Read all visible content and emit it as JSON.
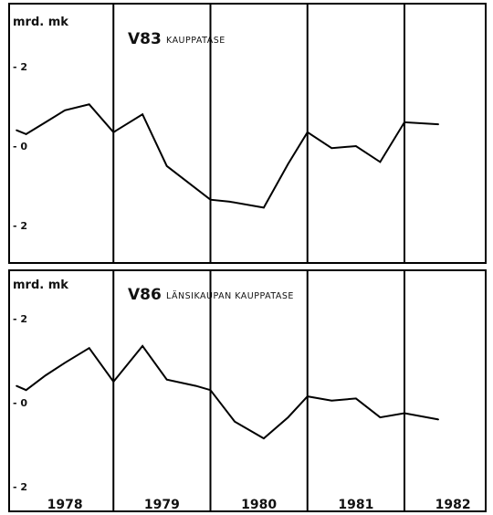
{
  "chart_data": [
    {
      "type": "line",
      "code": "V83",
      "title": "KAUPPATASE",
      "unit": "mrd. mk",
      "ylim": [
        -2.2,
        2.8
      ],
      "yticks": [
        {
          "value": 2,
          "label": "- 2"
        },
        {
          "value": 0,
          "label": "- 0"
        },
        {
          "value": -2,
          "label": "- 2"
        }
      ],
      "x_period": [
        1978,
        1982
      ],
      "series": [
        {
          "x": [
            1978.0,
            1978.1,
            1978.3,
            1978.5,
            1978.75,
            1979.0,
            1979.3,
            1979.55,
            1980.0,
            1980.2,
            1980.55,
            1980.8,
            1981.0,
            1981.25,
            1981.5,
            1981.75,
            1982.0,
            1982.35
          ],
          "y": [
            0.4,
            0.3,
            0.6,
            0.9,
            1.05,
            0.35,
            0.8,
            -0.5,
            -1.35,
            -1.4,
            -1.55,
            -0.45,
            0.35,
            -0.05,
            0.0,
            -0.4,
            0.6,
            0.55
          ]
        }
      ]
    },
    {
      "type": "line",
      "code": "V86",
      "title": "LÄNSIKAUPAN KAUPPATASE",
      "unit": "mrd. mk",
      "ylim": [
        -2.2,
        2.8
      ],
      "yticks": [
        {
          "value": 2,
          "label": "- 2"
        },
        {
          "value": 0,
          "label": "- 0"
        },
        {
          "value": -2,
          "label": "- 2"
        }
      ],
      "x_period": [
        1978,
        1982
      ],
      "series": [
        {
          "x": [
            1978.0,
            1978.1,
            1978.3,
            1978.5,
            1978.75,
            1979.0,
            1979.3,
            1979.55,
            1979.85,
            1980.0,
            1980.25,
            1980.55,
            1980.8,
            1981.0,
            1981.25,
            1981.5,
            1981.75,
            1982.0,
            1982.35
          ],
          "y": [
            0.4,
            0.3,
            0.65,
            0.95,
            1.3,
            0.5,
            1.35,
            0.55,
            0.4,
            0.3,
            -0.45,
            -0.85,
            -0.35,
            0.15,
            0.05,
            0.1,
            -0.35,
            -0.25,
            -0.4
          ]
        }
      ]
    }
  ],
  "x_axis": {
    "years": [
      "1978",
      "1979",
      "1980",
      "1981",
      "1982"
    ],
    "start": 1978.0,
    "end": 1982.8
  }
}
